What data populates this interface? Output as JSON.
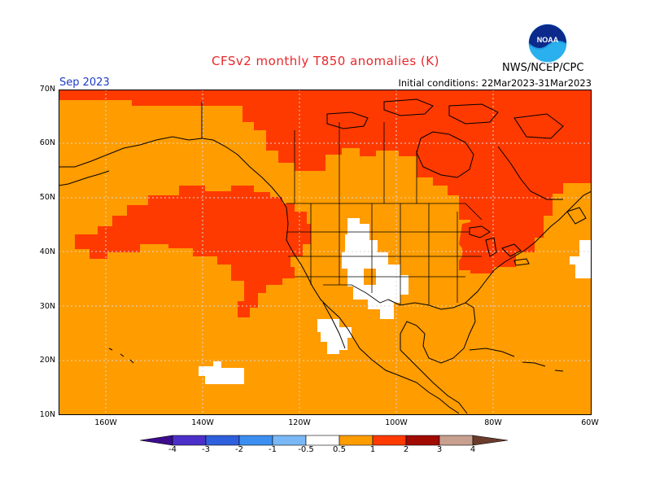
{
  "header": {
    "title": "CFSv2 monthly T850 anomalies (K)",
    "period": "Sep 2023",
    "initial_conditions": "Initial conditions: 22Mar2023-31Mar2023",
    "agency": "NWS/NCEP/CPC",
    "logo_text": "NOAA"
  },
  "axes": {
    "lat_labels": [
      "70N",
      "60N",
      "50N",
      "40N",
      "30N",
      "20N",
      "10N"
    ],
    "lon_labels": [
      "160W",
      "140W",
      "120W",
      "100W",
      "80W",
      "60W"
    ]
  },
  "legend": {
    "labels": [
      "-4",
      "-3",
      "-2",
      "-1",
      "-0.5",
      "0.5",
      "1",
      "2",
      "3",
      "4"
    ],
    "colors": {
      "below_m4": "#3c0c8c",
      "m4_m3": "#4a30c8",
      "m3_m2": "#2e5fdc",
      "m2_m1": "#3c8ff0",
      "m1_m05": "#7ab8f5",
      "m05_05": "#ffffff",
      "p05_p1": "#ff9c00",
      "p1_p2": "#ff3a00",
      "p2_p3": "#a00a00",
      "p3_p4": "#c8a090",
      "above_p4": "#6a3c2c"
    }
  },
  "map_colors": {
    "ocean_land_base": "#ff9c00",
    "warm": "#ff3a00",
    "neutral": "#ffffff",
    "coast": "#000000"
  }
}
